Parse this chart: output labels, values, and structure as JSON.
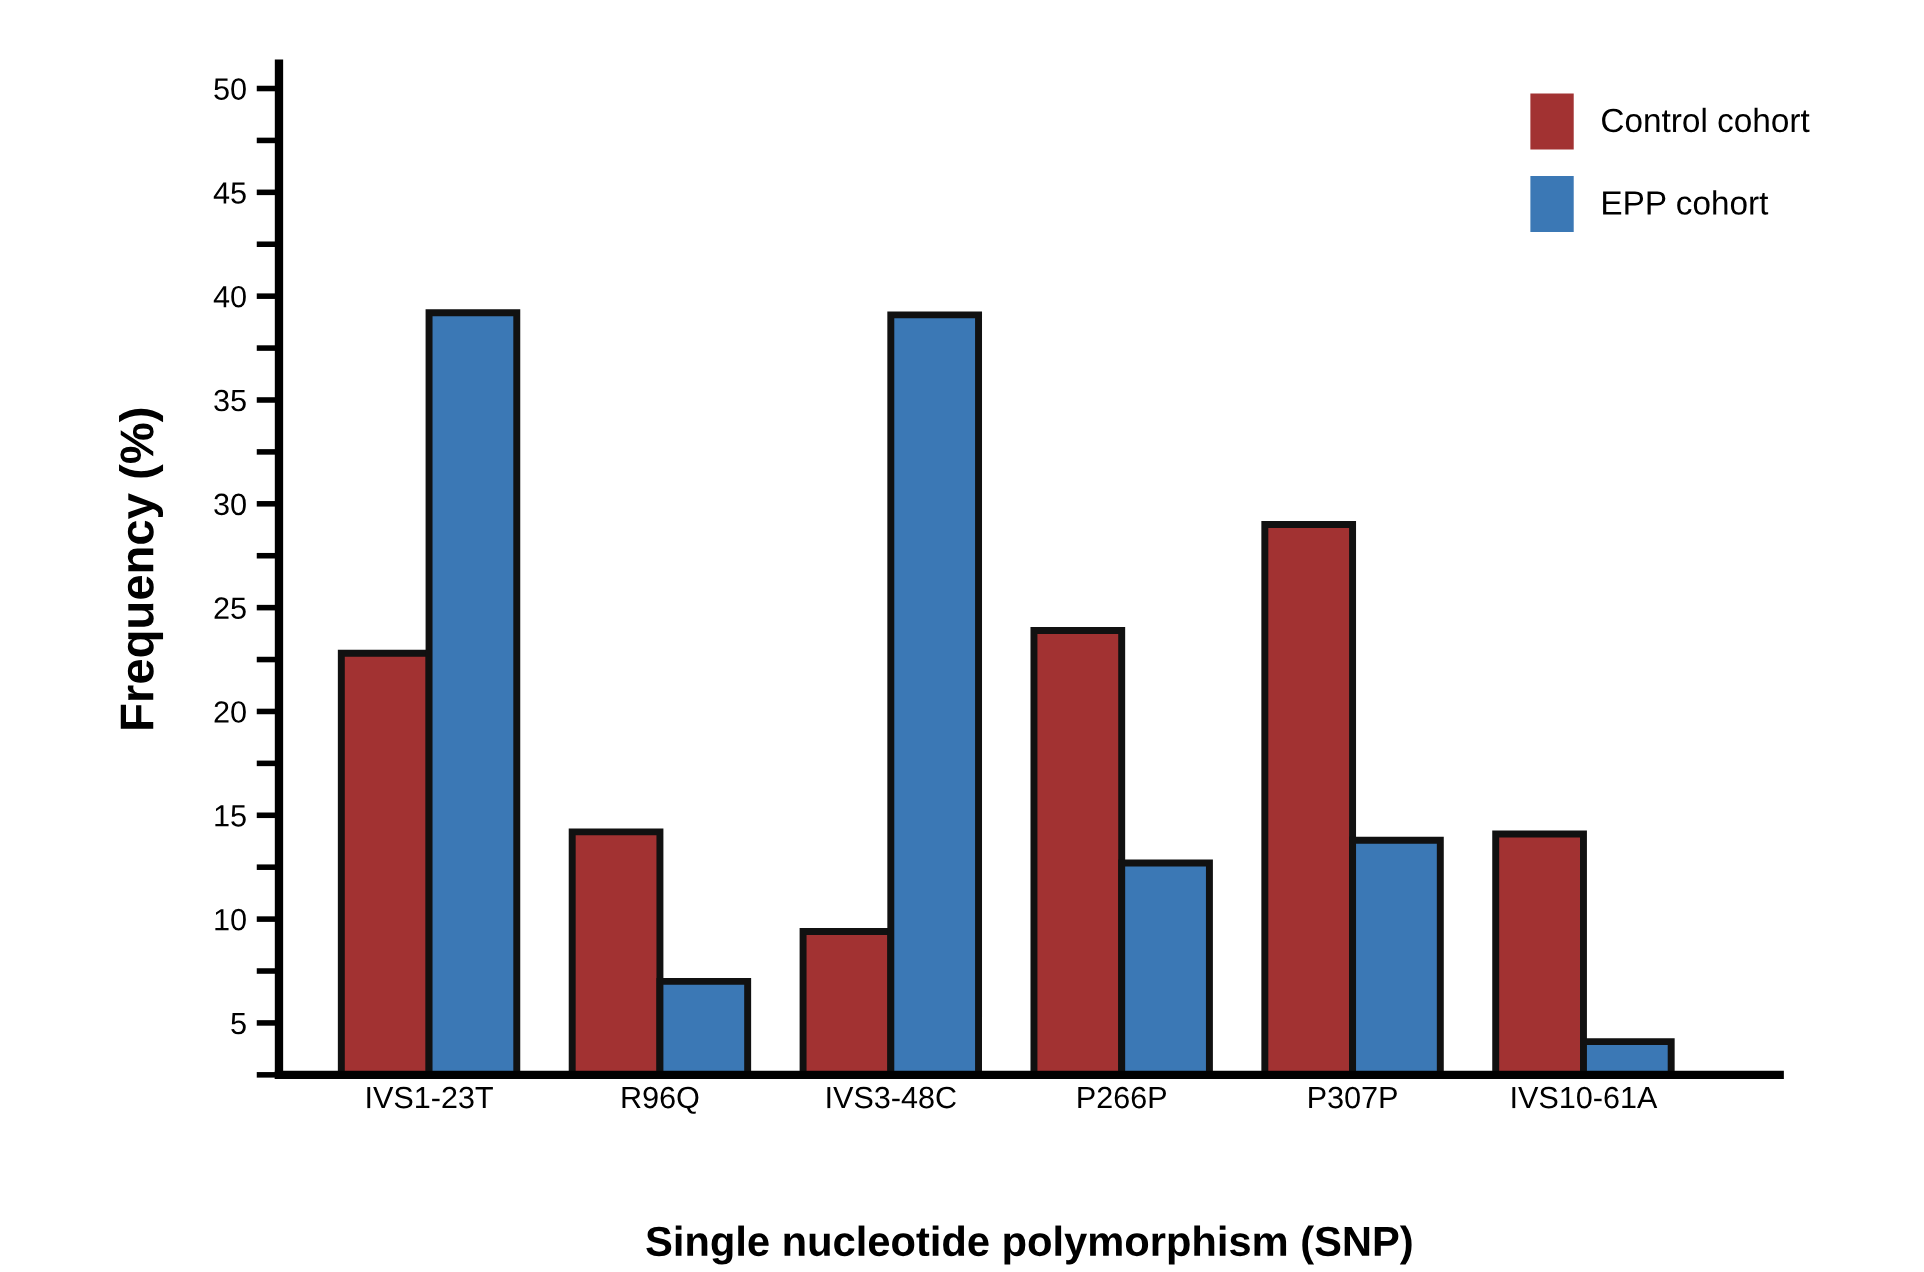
{
  "chart_data": {
    "type": "bar",
    "xlabel": "Single nucleotide polymorphism (SNP)",
    "ylabel": "Frequency (%)",
    "categories": [
      "IVS1-23T",
      "R96Q",
      "IVS3-48C",
      "P266P",
      "P307P",
      "IVS10-61A"
    ],
    "series": [
      {
        "name": "Control cohort",
        "color": "#a23232",
        "values": [
          22.8,
          14.2,
          9.4,
          23.9,
          29.0,
          14.1
        ]
      },
      {
        "name": "EPP cohort",
        "color": "#3b78b5",
        "values": [
          39.2,
          7.0,
          39.1,
          12.7,
          13.8,
          4.1
        ]
      }
    ],
    "ylim": [
      2.5,
      51.2
    ],
    "yticks": [
      {
        "value": 2.5,
        "label": null
      },
      5,
      {
        "value": 7.5,
        "label": null
      },
      10,
      {
        "value": 12.5,
        "label": null
      },
      15,
      {
        "value": 17.5,
        "label": null
      },
      20,
      {
        "value": 22.5,
        "label": null
      },
      25,
      {
        "value": 27.5,
        "label": null
      },
      30,
      {
        "value": 32.5,
        "label": null
      },
      35,
      {
        "value": 37.5,
        "label": null
      },
      40,
      {
        "value": 42.5,
        "label": null
      },
      45,
      {
        "value": 47.5,
        "label": null
      },
      50
    ],
    "grid": false,
    "legend": "top right"
  }
}
